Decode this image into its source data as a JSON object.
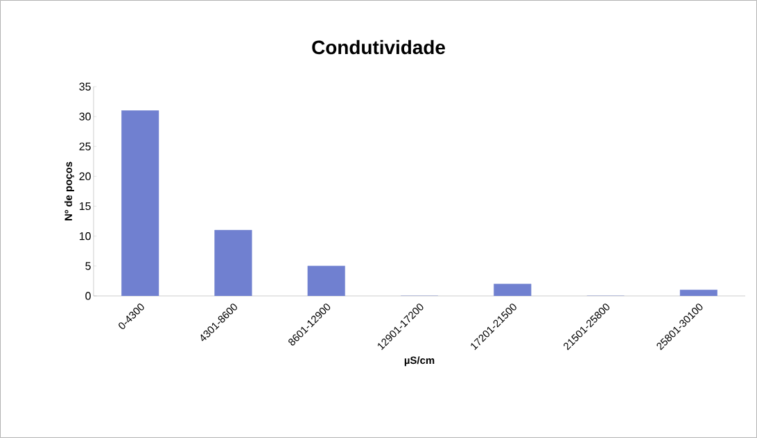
{
  "chart_data": {
    "type": "bar",
    "title": "Condutividade",
    "xlabel": "µS/cm",
    "ylabel": "Nº de poços",
    "categories": [
      "0-4300",
      "4301-8600",
      "8601-12900",
      "12901-17200",
      "17201-21500",
      "21501-25800",
      "25801-30100"
    ],
    "values": [
      31,
      11,
      5,
      0,
      2,
      0,
      1
    ],
    "color": "#7080d0",
    "ylim": [
      0,
      35
    ],
    "yticks": [
      0,
      5,
      10,
      15,
      20,
      25,
      30,
      35
    ]
  }
}
